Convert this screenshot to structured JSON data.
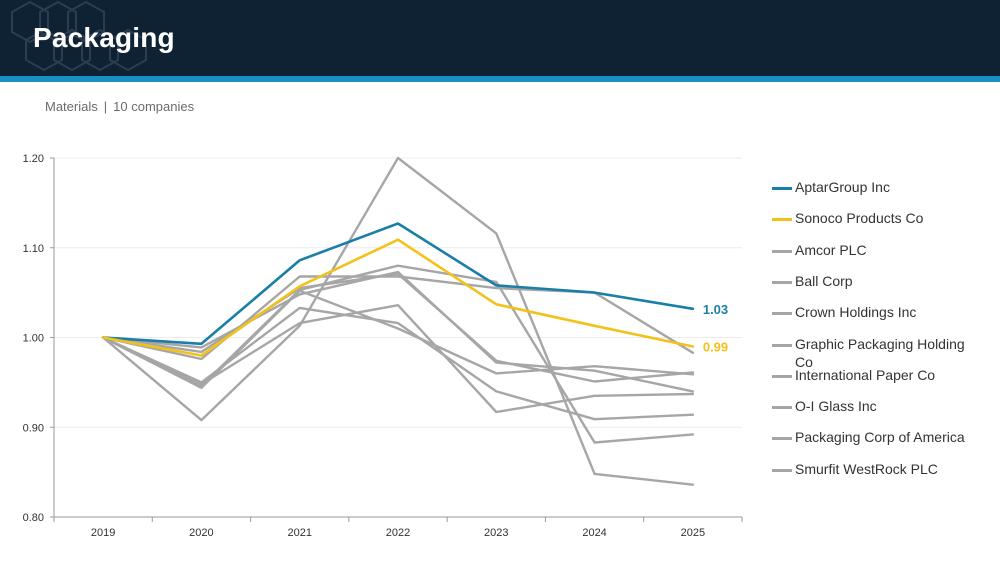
{
  "page": {
    "title": "Packaging",
    "subtitle_sector": "Materials",
    "subtitle_count": "10 companies",
    "subtitle_separator": "|"
  },
  "colors": {
    "header_bg": "#0f2233",
    "header_stripe": "#1a8fc4",
    "highlight_blue": "#1a7fa8",
    "highlight_yellow": "#f2c21b",
    "peer_gray": "#a6a6a6",
    "axis": "#9a9a9a"
  },
  "chart_data": {
    "type": "line",
    "x": [
      "2019",
      "2020",
      "2021",
      "2022",
      "2023",
      "2024",
      "2025"
    ],
    "ylim": [
      0.8,
      1.2
    ],
    "yticks": [
      "0.80",
      "0.90",
      "1.00",
      "1.10",
      "1.20"
    ],
    "grid": "horizontal",
    "legend_position": "right",
    "series": [
      {
        "name": "AptarGroup Inc",
        "color": "#1a7fa8",
        "highlight": true,
        "end_label": "1.03",
        "values": [
          1.0,
          0.993,
          1.086,
          1.127,
          1.058,
          1.05,
          1.032
        ]
      },
      {
        "name": "Sonoco Products Co",
        "color": "#f2c21b",
        "highlight": true,
        "end_label": "0.99",
        "values": [
          1.0,
          0.98,
          1.057,
          1.109,
          1.037,
          1.013,
          0.99
        ]
      },
      {
        "name": "Amcor PLC",
        "color": "#a6a6a6",
        "highlight": false,
        "values": [
          1.0,
          0.976,
          1.068,
          1.068,
          1.055,
          1.05,
          0.983
        ]
      },
      {
        "name": "Ball Corp",
        "color": "#a6a6a6",
        "highlight": false,
        "values": [
          1.0,
          0.908,
          1.013,
          1.2,
          1.116,
          0.848,
          0.836
        ]
      },
      {
        "name": "Crown Holdings Inc",
        "color": "#a6a6a6",
        "highlight": false,
        "values": [
          1.0,
          0.946,
          1.053,
          1.08,
          1.062,
          0.883,
          0.892
        ]
      },
      {
        "name": "Graphic Packaging Holding Co",
        "color": "#a6a6a6",
        "highlight": false,
        "values": [
          1.0,
          0.989,
          1.048,
          1.073,
          0.972,
          0.963,
          0.94
        ]
      },
      {
        "name": "International Paper Co",
        "color": "#a6a6a6",
        "highlight": false,
        "values": [
          1.0,
          0.984,
          1.055,
          1.071,
          0.974,
          0.951,
          0.961
        ]
      },
      {
        "name": "O-I Glass Inc",
        "color": "#a6a6a6",
        "highlight": false,
        "values": [
          1.0,
          0.95,
          1.033,
          1.016,
          0.94,
          0.909,
          0.914
        ]
      },
      {
        "name": "Packaging Corp of America",
        "color": "#a6a6a6",
        "highlight": false,
        "values": [
          1.0,
          0.948,
          1.016,
          1.036,
          0.917,
          0.935,
          0.937
        ]
      },
      {
        "name": "Smurfit WestRock PLC",
        "color": "#a6a6a6",
        "highlight": false,
        "values": [
          1.0,
          0.944,
          1.052,
          1.01,
          0.96,
          0.968,
          0.959
        ]
      }
    ]
  }
}
